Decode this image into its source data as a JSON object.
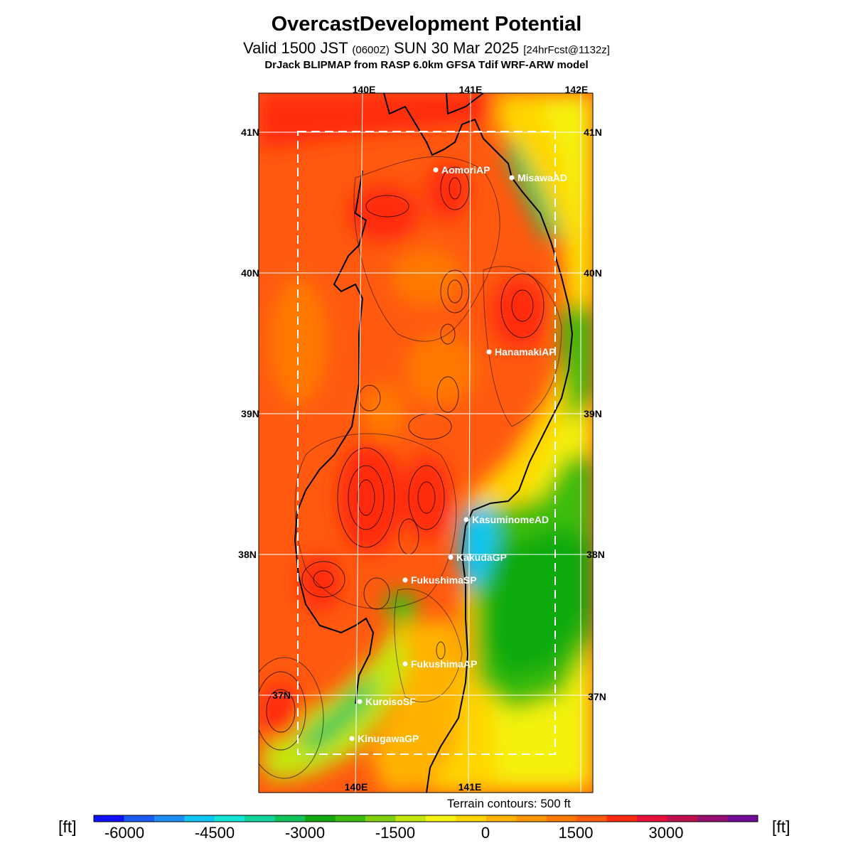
{
  "header": {
    "title": "OvercastDevelopment Potential",
    "valid_prefix": "Valid 1500 JST",
    "utc_time": "(0600Z)",
    "date": "SUN 30 Mar 2025",
    "forecast_tag": "[24hrFcst@1132z]",
    "model_line": "DrJack BLIPMAP from RASP 6.0km GFSA Tdif WRF-ARW model"
  },
  "map": {
    "lon_labels_top": [
      "140E",
      "141E",
      "142E"
    ],
    "lon_labels_bottom": [
      "140E",
      "141E"
    ],
    "lat_labels_left": [
      "41N",
      "40N",
      "39N",
      "38N",
      "37N"
    ],
    "lat_labels_right": [
      "41N",
      "40N",
      "39N",
      "38N",
      "37N"
    ],
    "airports": [
      {
        "name": "AomoriAP"
      },
      {
        "name": "MisawaAD"
      },
      {
        "name": "HanamakiAP"
      },
      {
        "name": "KasuminomeAD"
      },
      {
        "name": "KakudaGP"
      },
      {
        "name": "FukushimaSP"
      },
      {
        "name": "FukushimaAP"
      },
      {
        "name": "KuroisoSF"
      },
      {
        "name": "KinugawaGP"
      }
    ],
    "terrain_note": "Terrain contours: 500 ft"
  },
  "colorbar": {
    "unit": "[ft]",
    "tick_labels": [
      "-6000",
      "-4500",
      "-3000",
      "-1500",
      "0",
      "1500",
      "3000"
    ],
    "colors": [
      "#1010ff",
      "#1b5bf5",
      "#1d8ff7",
      "#10c6f4",
      "#12e6d6",
      "#10d49a",
      "#12c45a",
      "#10aa10",
      "#3dbd10",
      "#80d010",
      "#c4e610",
      "#f4f210",
      "#ffd500",
      "#ffb300",
      "#ff9900",
      "#ff7a00",
      "#ff5a10",
      "#ff2a10",
      "#e8103a",
      "#c01050",
      "#961070",
      "#700c96"
    ]
  }
}
